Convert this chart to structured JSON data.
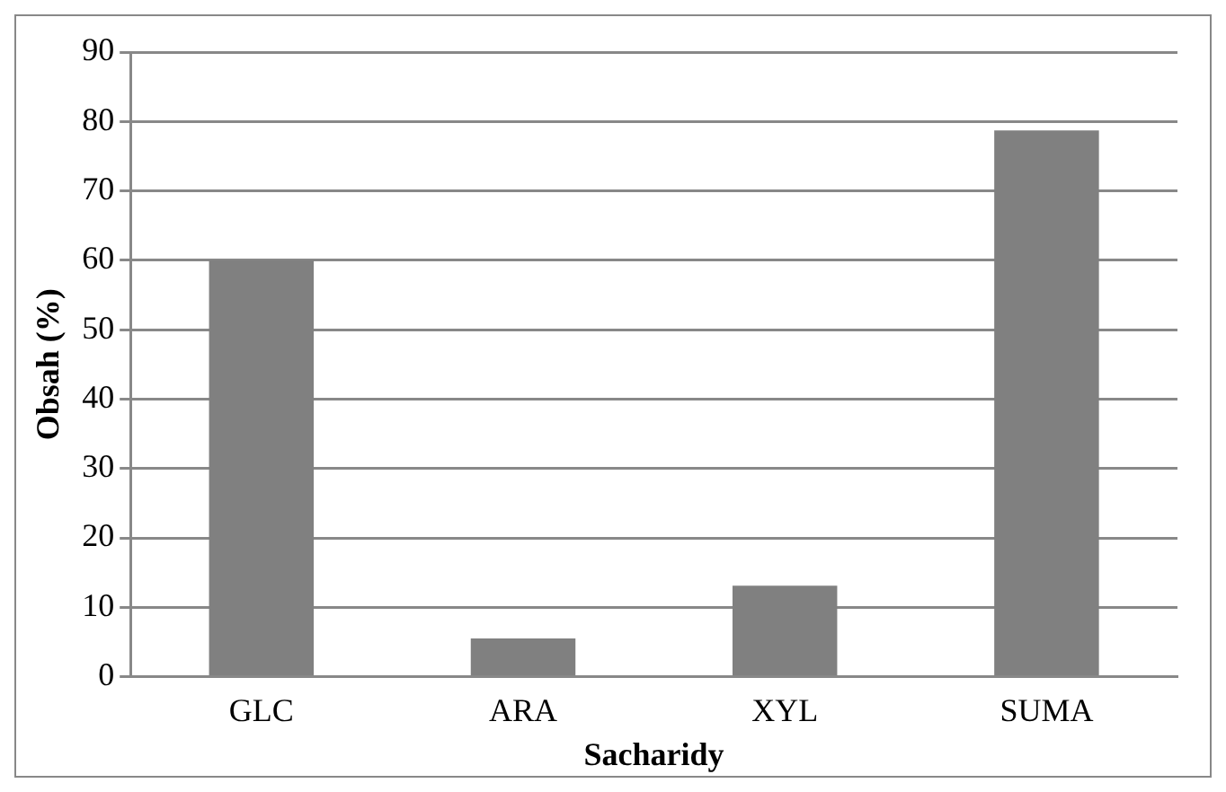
{
  "chart_data": {
    "type": "bar",
    "xlabel": "Sacharidy",
    "ylabel": "Obsah (%)",
    "categories": [
      "GLC",
      "ARA",
      "XYL",
      "SUMA"
    ],
    "values": [
      60,
      5.5,
      13.1,
      78.7
    ],
    "color": "#808080",
    "ylim": [
      0,
      90
    ],
    "yticks": [
      0,
      10,
      20,
      30,
      40,
      50,
      60,
      70,
      80,
      90
    ],
    "grid": "y",
    "legend": false
  }
}
